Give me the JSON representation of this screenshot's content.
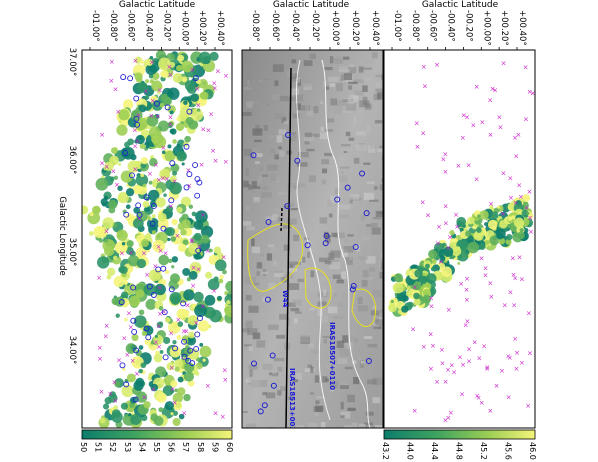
{
  "panels": [
    {
      "title": "Galactic Latitude",
      "xticks": [
        "-01.00°",
        "-00.80°",
        "-00.60°",
        "-00.40°",
        "-00.20°",
        "+00.00°",
        "+00.20°",
        "+00.40°"
      ],
      "colorbar": {
        "ticks": [
          "50",
          "51",
          "52",
          "53",
          "54",
          "55",
          "56",
          "57",
          "58",
          "59",
          "60"
        ],
        "colors": [
          "#0d7d6d",
          "#3ea35f",
          "#9fcf55",
          "#f4f57a"
        ]
      }
    },
    {
      "title": "Galactic Latitude",
      "xticks": [
        "-00.80°",
        "-00.60°",
        "-00.40°",
        "-00.20°",
        "+00.00°",
        "+00.20°",
        "+00.40°"
      ],
      "annotations": [
        "W44",
        "IRAS18507+0110",
        "IRAS18513+0035"
      ]
    },
    {
      "title": "Galactic Latitude",
      "xticks": [
        "-01.00°",
        "-00.80°",
        "-00.60°",
        "-00.40°",
        "-00.20°",
        "+00.00°",
        "+00.20°",
        "+00.40°"
      ],
      "colorbar": {
        "ticks": [
          "43.2",
          "44.0",
          "44.4",
          "44.8",
          "45.2",
          "45.6",
          "46.0"
        ],
        "colors": [
          "#0d7d6d",
          "#3ea35f",
          "#9fcf55",
          "#f4f57a"
        ]
      }
    }
  ],
  "ylabel": "Galactic Longitude",
  "yticks": [
    "37.00°",
    "36.00°",
    "35.00°",
    "34.00°"
  ]
}
